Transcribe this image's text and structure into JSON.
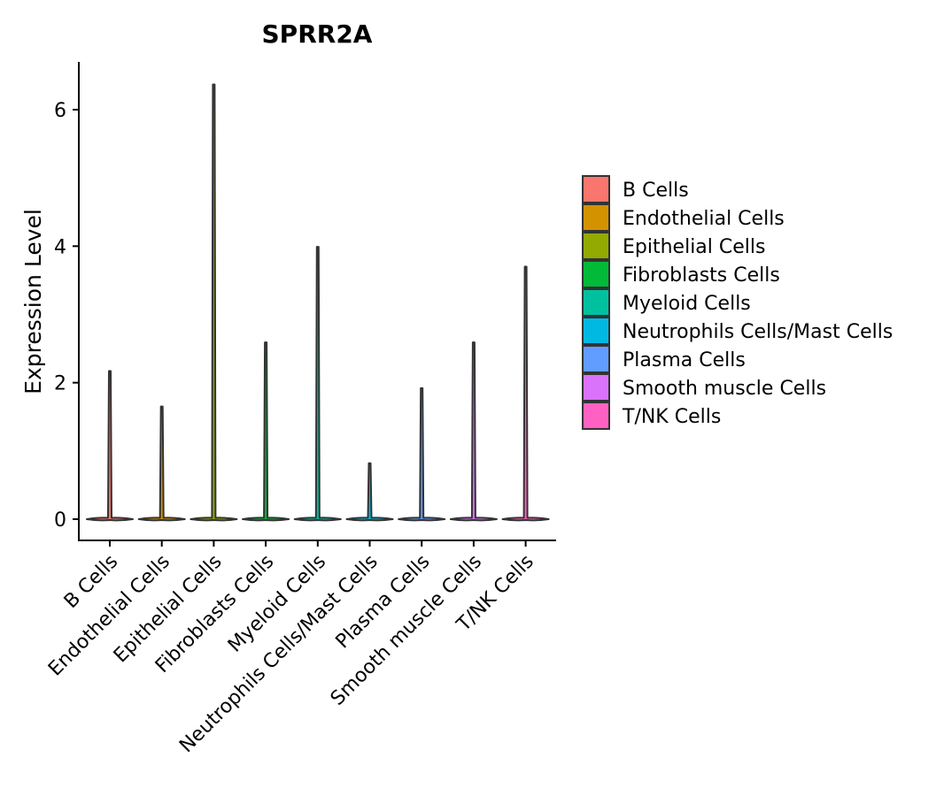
{
  "chart_data": {
    "type": "violin",
    "title": "SPRR2A",
    "xlabel": "",
    "ylabel": "Expression Level",
    "ylim": [
      -0.3,
      6.7
    ],
    "yticks": [
      0,
      2,
      4,
      6
    ],
    "ytick_labels": [
      "0",
      "2",
      "4",
      "6"
    ],
    "categories": [
      "B Cells",
      "Endothelial Cells",
      "Epithelial Cells",
      "Fibroblasts Cells",
      "Myeloid Cells",
      "Neutrophils Cells/Mast Cells",
      "Plasma Cells",
      "Smooth muscle Cells",
      "T/NK Cells"
    ],
    "max_values": [
      2.17,
      1.65,
      6.37,
      2.59,
      3.99,
      0.82,
      1.92,
      2.59,
      3.7
    ],
    "median_values": [
      0,
      0,
      0,
      0,
      0,
      0,
      0,
      0,
      0
    ],
    "colors": [
      "#F8766D",
      "#D39200",
      "#93AA00",
      "#00BA38",
      "#00C19F",
      "#00B9E3",
      "#619CFF",
      "#DB72FB",
      "#FF61C3"
    ],
    "legend": {
      "position": "right",
      "entries": [
        "B Cells",
        "Endothelial Cells",
        "Epithelial Cells",
        "Fibroblasts Cells",
        "Myeloid Cells",
        "Neutrophils Cells/Mast Cells",
        "Plasma Cells",
        "Smooth muscle Cells",
        "T/NK Cells"
      ]
    },
    "grid": false
  }
}
